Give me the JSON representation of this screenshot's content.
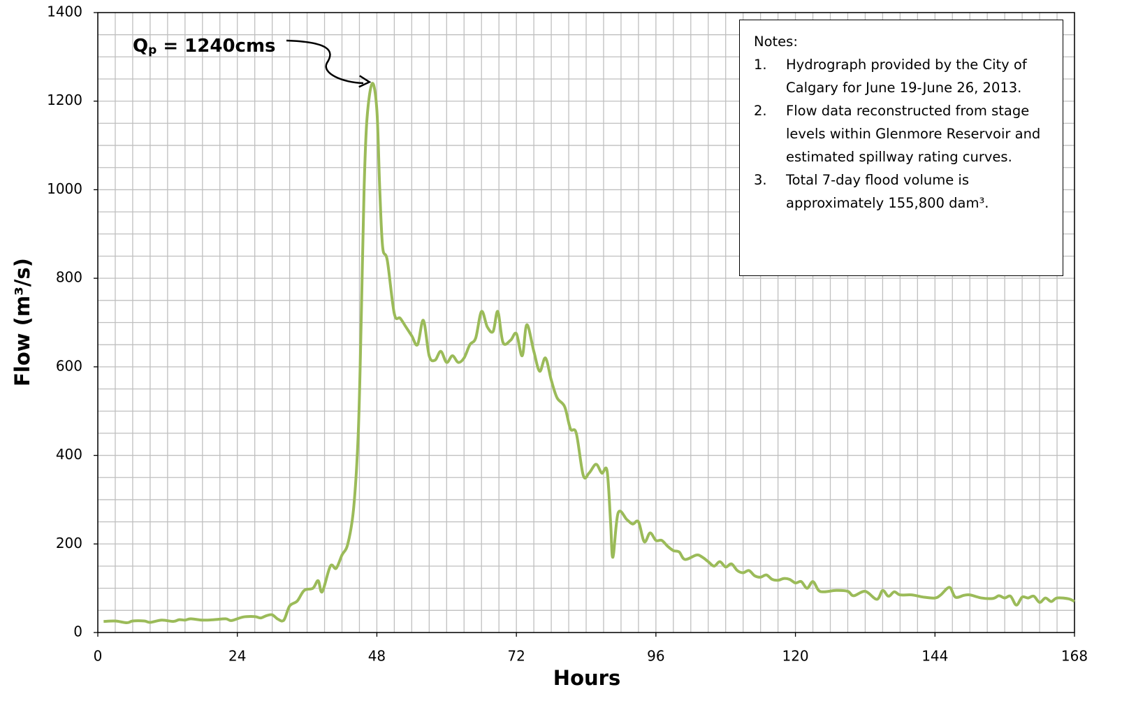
{
  "chart_data": {
    "type": "line",
    "xlabel": "Hours",
    "ylabel": "Flow (m³/s)",
    "xlim": [
      0,
      168
    ],
    "xticks": [
      0,
      24,
      48,
      72,
      96,
      120,
      144,
      168
    ],
    "ylim": [
      0,
      1400
    ],
    "yticks": [
      0,
      200,
      400,
      600,
      800,
      1000,
      1200,
      1400
    ],
    "grid": true,
    "x_minor_step": 3,
    "y_minor_step": 50,
    "annotation": {
      "text": "Q",
      "subscript": "p",
      "rest": " = 1240cms",
      "x": 47.2,
      "y": 1240
    },
    "notes": {
      "title": "Notes:",
      "items": [
        {
          "number": "1.",
          "text": "Hydrograph provided by the City of Calgary for June 19-June 26, 2013."
        },
        {
          "number": "2.",
          "text": "Flow data reconstructed from stage levels within Glenmore Reservoir and estimated spillway rating curves."
        },
        {
          "number": "3.",
          "text": "Total 7-day flood volume is approximately 155,800 dam³."
        }
      ]
    },
    "series": [
      {
        "name": "Flow",
        "color": "#9bbb59",
        "x": [
          1,
          3,
          5,
          6,
          8,
          9,
          11,
          13,
          14,
          15,
          16,
          18,
          20,
          22,
          23,
          25,
          27,
          28,
          29,
          30,
          31,
          32,
          33,
          34.3,
          35.5,
          37,
          37.9,
          38.6,
          40,
          41,
          42,
          43,
          44,
          44.8,
          45.3,
          45.8,
          46.3,
          47.2,
          48,
          48.5,
          49,
          49.8,
          51,
          52,
          53,
          54,
          55,
          56,
          57,
          58,
          59,
          60,
          61,
          62,
          63,
          64,
          65,
          66,
          67,
          68,
          68.8,
          69.7,
          71,
          72,
          73,
          73.8,
          75,
          76,
          77,
          78,
          79,
          80.3,
          81.3,
          82.3,
          83.5,
          84.5,
          85.7,
          86.7,
          87.6,
          88.2,
          88.6,
          89.5,
          91,
          92,
          93,
          94,
          95,
          96,
          97,
          98,
          99,
          100,
          101,
          103,
          104,
          105,
          106,
          107,
          108,
          109,
          110,
          111,
          112,
          113,
          114,
          115,
          116,
          117,
          118,
          119,
          120,
          121,
          122,
          123,
          124,
          125,
          127,
          129,
          130,
          132,
          134,
          135,
          136,
          137,
          138,
          140,
          142,
          144,
          145,
          146.5,
          147.5,
          149,
          150,
          152,
          154,
          155,
          156,
          157,
          158,
          159,
          160,
          161,
          162,
          163,
          164,
          165,
          167,
          168
        ],
        "values": [
          25,
          26,
          22,
          26,
          26,
          23,
          28,
          25,
          29,
          28,
          31,
          28,
          29,
          31,
          27,
          35,
          36,
          33,
          38,
          40,
          30,
          28,
          60,
          71,
          95,
          100,
          117,
          92,
          150,
          145,
          175,
          200,
          280,
          450,
          700,
          1000,
          1160,
          1240,
          1180,
          1000,
          870,
          840,
          720,
          710,
          690,
          670,
          650,
          705,
          625,
          615,
          635,
          610,
          625,
          610,
          620,
          650,
          665,
          725,
          690,
          680,
          725,
          655,
          660,
          675,
          625,
          695,
          635,
          590,
          620,
          570,
          530,
          510,
          460,
          450,
          355,
          360,
          380,
          360,
          365,
          250,
          170,
          270,
          255,
          245,
          250,
          205,
          225,
          208,
          208,
          195,
          185,
          182,
          165,
          175,
          170,
          160,
          150,
          160,
          148,
          155,
          140,
          135,
          140,
          128,
          125,
          130,
          120,
          118,
          122,
          120,
          112,
          115,
          100,
          115,
          95,
          92,
          95,
          93,
          83,
          93,
          75,
          95,
          82,
          92,
          85,
          85,
          80,
          78,
          85,
          102,
          80,
          84,
          85,
          78,
          77,
          83,
          78,
          82,
          62,
          80,
          78,
          82,
          68,
          78,
          70,
          78,
          76,
          70
        ]
      }
    ]
  }
}
